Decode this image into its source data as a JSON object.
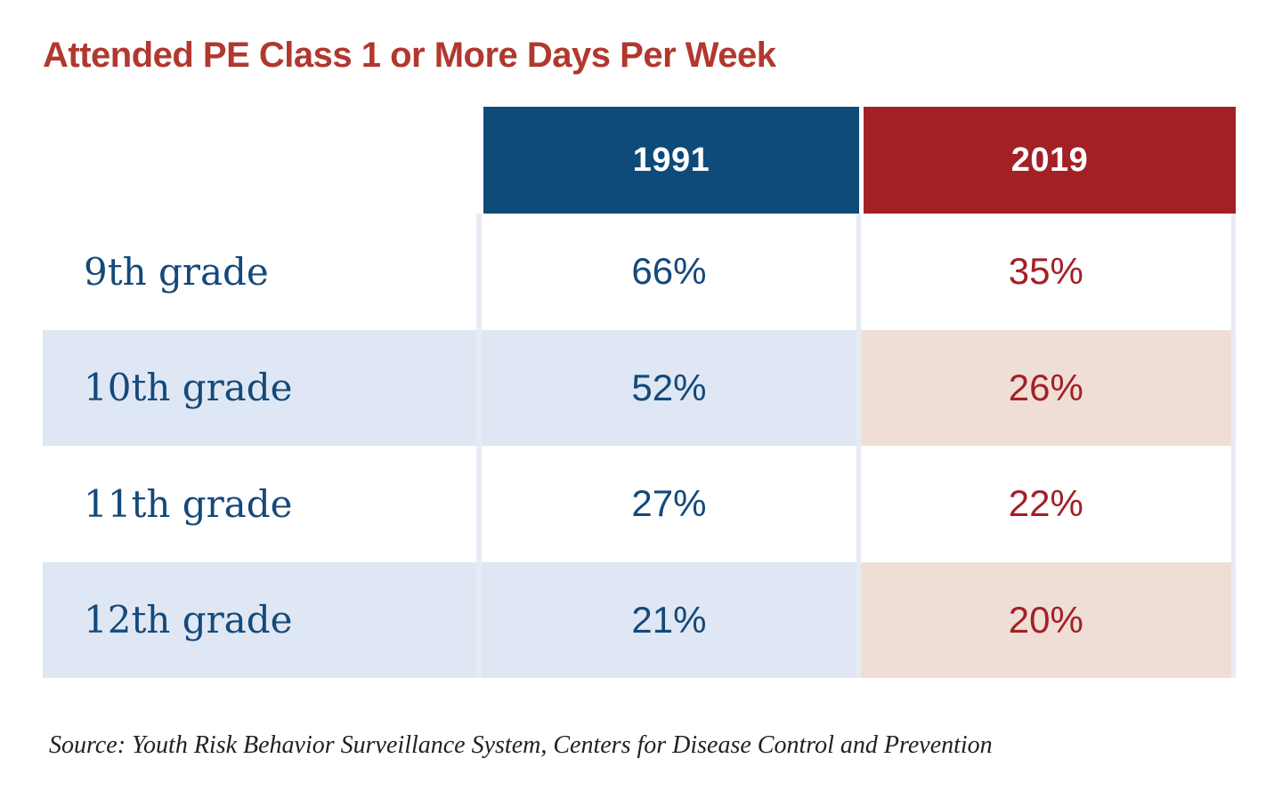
{
  "title": {
    "text": "Attended PE Class 1 or More Days Per Week"
  },
  "table": {
    "columns": [
      {
        "label": "1991"
      },
      {
        "label": "2019"
      }
    ],
    "rows": [
      {
        "label": "9th grade",
        "values": [
          "66%",
          "35%"
        ]
      },
      {
        "label": "10th grade",
        "values": [
          "52%",
          "26%"
        ]
      },
      {
        "label": "11th grade",
        "values": [
          "27%",
          "22%"
        ]
      },
      {
        "label": "12th grade",
        "values": [
          "21%",
          "20%"
        ]
      }
    ]
  },
  "source": {
    "text": "Source: Youth Risk Behavior Surveillance System, Centers for Disease Control and Prevention"
  },
  "colors": {
    "background": "#FFFFFF",
    "title_red": "#B1382E",
    "header_blue": "#0E4B78",
    "header_red": "#A32025",
    "label_navy": "#14497B",
    "value_red": "#A32026",
    "row_tint_blue": "#DEE7F3",
    "row_tint_pink": "#EFDED5",
    "divider": "#E7ECF4"
  },
  "chart_data": {
    "type": "table",
    "title": "Attended PE Class 1 or More Days Per Week",
    "categories": [
      "9th grade",
      "10th grade",
      "11th grade",
      "12th grade"
    ],
    "series": [
      {
        "name": "1991",
        "unit": "%",
        "values": [
          66,
          52,
          27,
          21
        ]
      },
      {
        "name": "2019",
        "unit": "%",
        "values": [
          35,
          26,
          22,
          20
        ]
      }
    ],
    "legend_position": "top",
    "grid": false,
    "source": "Source: Youth Risk Behavior Surveillance System, Centers for Disease Control and Prevention"
  }
}
